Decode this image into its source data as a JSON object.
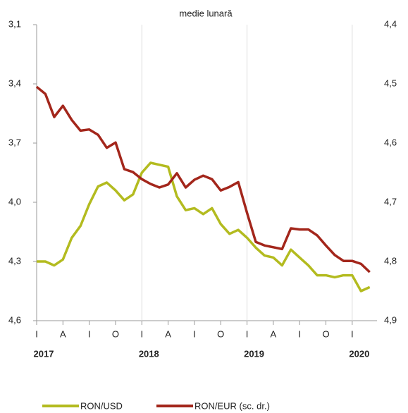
{
  "chart_data": {
    "type": "line",
    "subtitle": "medie lunară",
    "categories": [
      "I",
      null,
      null,
      "A",
      null,
      null,
      "I",
      null,
      null,
      "O",
      null,
      null,
      "I",
      null,
      null,
      "A",
      null,
      null,
      "I",
      null,
      null,
      "O",
      null,
      null,
      "I",
      null,
      null,
      "A",
      null,
      null,
      "I",
      null,
      null,
      "O",
      null,
      null,
      "I",
      null,
      null
    ],
    "year_labels": [
      "2017",
      "2018",
      "2019",
      "2020"
    ],
    "series": [
      {
        "name": "RON/USD",
        "color": "#b3bb1f",
        "values": [
          4.3,
          4.3,
          4.32,
          4.29,
          4.18,
          4.12,
          4.01,
          3.92,
          3.9,
          3.94,
          3.99,
          3.96,
          3.85,
          3.8,
          3.81,
          3.82,
          3.97,
          4.04,
          4.03,
          4.06,
          4.03,
          4.11,
          4.16,
          4.14,
          4.18,
          4.23,
          4.27,
          4.28,
          4.32,
          4.24,
          4.28,
          4.32,
          4.37,
          4.37,
          4.38,
          4.37,
          4.37,
          4.45,
          4.43
        ]
      },
      {
        "name": "RON/EUR (sc. dr.)",
        "color": "#a3261b",
        "axis": "y2",
        "values": [
          4.505,
          4.517,
          4.556,
          4.537,
          4.561,
          4.579,
          4.577,
          4.586,
          4.608,
          4.599,
          4.644,
          4.649,
          4.661,
          4.669,
          4.675,
          4.67,
          4.651,
          4.675,
          4.662,
          4.655,
          4.661,
          4.68,
          4.674,
          4.666,
          4.718,
          4.767,
          4.773,
          4.776,
          4.779,
          4.744,
          4.746,
          4.746,
          4.756,
          4.773,
          4.789,
          4.799,
          4.799,
          4.804,
          4.818
        ]
      }
    ],
    "ylim": [
      3.1,
      4.6
    ],
    "y_inverted": true,
    "yticks": [
      {
        "value": 3.1,
        "label": "3,1"
      },
      {
        "value": 3.4,
        "label": "3,4"
      },
      {
        "value": 3.7,
        "label": "3,7"
      },
      {
        "value": 4.0,
        "label": "4,0"
      },
      {
        "value": 4.3,
        "label": "4,3"
      },
      {
        "value": 4.6,
        "label": "4,6"
      }
    ],
    "y2lim": [
      4.4,
      4.9
    ],
    "y2_inverted": true,
    "y2ticks": [
      {
        "value": 4.4,
        "label": "4,4"
      },
      {
        "value": 4.5,
        "label": "4,5"
      },
      {
        "value": 4.6,
        "label": "4,6"
      },
      {
        "value": 4.7,
        "label": "4,7"
      },
      {
        "value": 4.8,
        "label": "4,8"
      },
      {
        "value": 4.9,
        "label": "4,9"
      }
    ],
    "legend": "bottom"
  }
}
